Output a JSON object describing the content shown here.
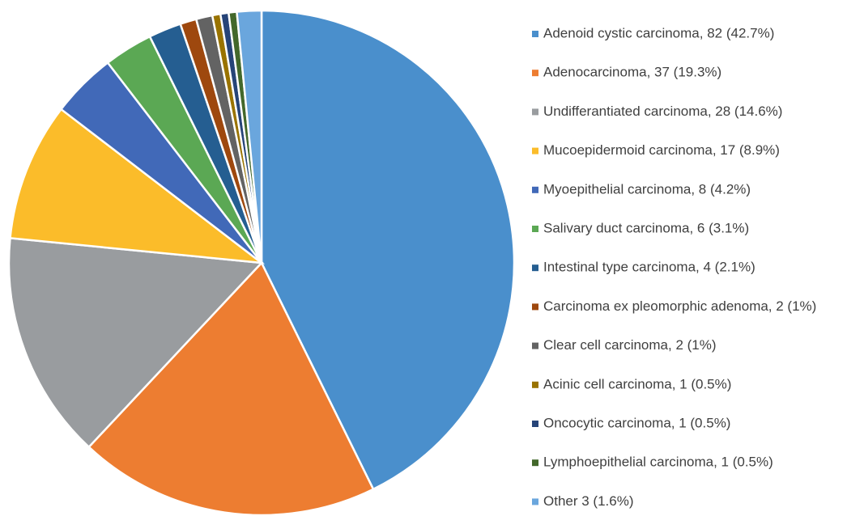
{
  "chart_data": {
    "type": "pie",
    "categories": [
      "Adenoid cystic carcinoma, 82 (42.7%)",
      "Adenocarcinoma, 37 (19.3%)",
      "Undifferantiated carcinoma, 28 (14.6%)",
      "Mucoepidermoid carcinoma, 17 (8.9%)",
      "Myoepithelial carcinoma, 8 (4.2%)",
      "Salivary duct carcinoma, 6 (3.1%)",
      "Intestinal type carcinoma, 4 (2.1%)",
      "Carcinoma ex pleomorphic adenoma, 2 (1%)",
      "Clear cell carcinoma, 2 (1%)",
      "Acinic cell carcinoma, 1 (0.5%)",
      "Oncocytic carcinoma, 1 (0.5%)",
      "Lymphoepithelial carcinoma, 1 (0.5%)",
      "Other 3 (1.6%)"
    ],
    "values": [
      82,
      37,
      28,
      17,
      8,
      6,
      4,
      2,
      2,
      1,
      1,
      1,
      3
    ],
    "colors": [
      "#4a8fcc",
      "#ed7d31",
      "#999c9f",
      "#fbbc2a",
      "#4169b8",
      "#5ba854",
      "#255e91",
      "#9e480e",
      "#636363",
      "#997300",
      "#264478",
      "#43682b",
      "#6aa6dd"
    ],
    "legend": "right"
  }
}
